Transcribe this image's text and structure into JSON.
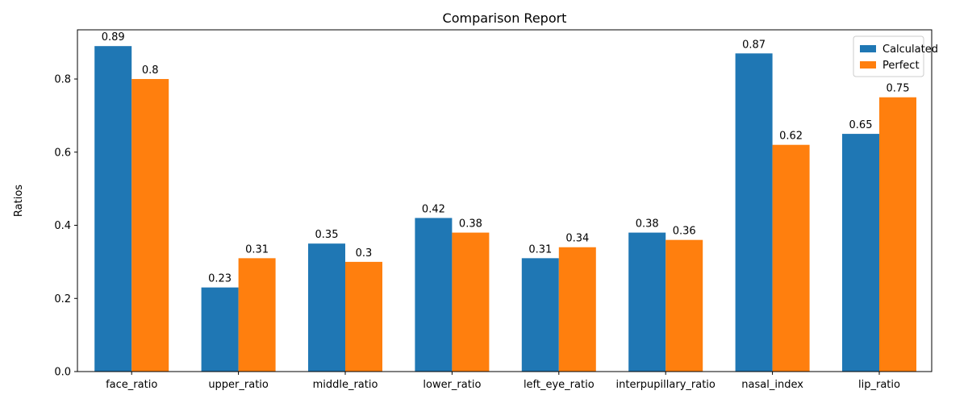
{
  "chart_data": {
    "type": "bar",
    "title": "Comparison Report",
    "xlabel": "",
    "ylabel": "Ratios",
    "categories": [
      "face_ratio",
      "upper_ratio",
      "middle_ratio",
      "lower_ratio",
      "left_eye_ratio",
      "interpupillary_ratio",
      "nasal_index",
      "lip_ratio"
    ],
    "series": [
      {
        "name": "Calculated",
        "color": "#1f77b4",
        "values": [
          0.89,
          0.23,
          0.35,
          0.42,
          0.31,
          0.38,
          0.87,
          0.65
        ],
        "labels": [
          "0.89",
          "0.23",
          "0.35",
          "0.42",
          "0.31",
          "0.38",
          "0.87",
          "0.65"
        ]
      },
      {
        "name": "Perfect",
        "color": "#ff7f0e",
        "values": [
          0.8,
          0.31,
          0.3,
          0.38,
          0.34,
          0.36,
          0.62,
          0.75
        ],
        "labels": [
          "0.8",
          "0.31",
          "0.3",
          "0.38",
          "0.34",
          "0.36",
          "0.62",
          "0.75"
        ]
      }
    ],
    "ylim": [
      0,
      0.9345
    ],
    "yticks": [
      0.0,
      0.2,
      0.4,
      0.6,
      0.8
    ],
    "ytick_labels": [
      "0.0",
      "0.2",
      "0.4",
      "0.6",
      "0.8"
    ],
    "grid": false,
    "legend_position": "top-right"
  }
}
